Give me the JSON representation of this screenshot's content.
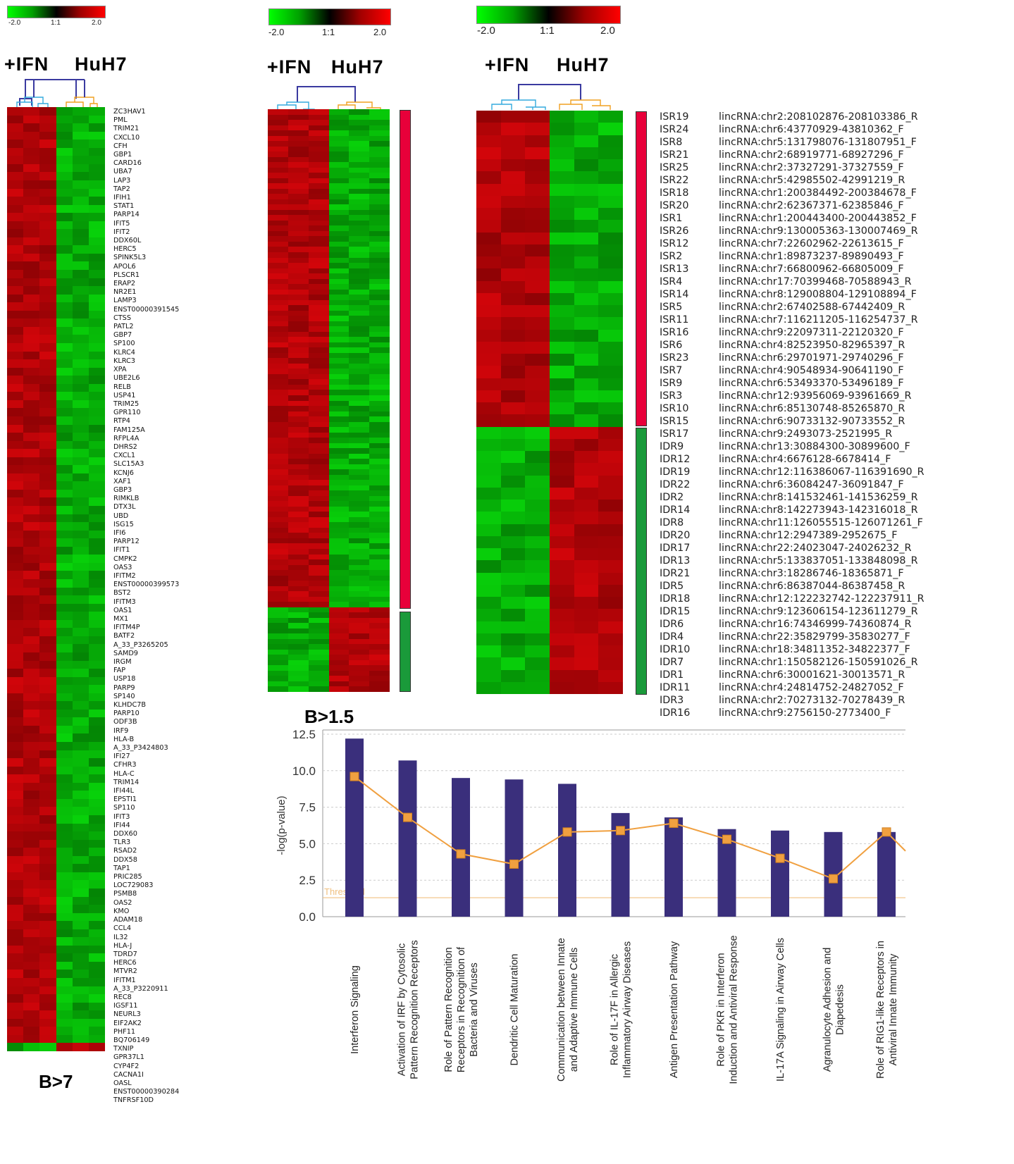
{
  "heatmap_left": {
    "scale": {
      "min_label": "-2.0",
      "mid_label": "1:1",
      "max_label": "2.0"
    },
    "groups": {
      "left": "+IFN",
      "right": "HuH7"
    },
    "genes": [
      "ZC3HAV1",
      "PML",
      "TRIM21",
      "CXCL10",
      "CFH",
      "GBP1",
      "CARD16",
      "UBA7",
      "LAP3",
      "TAP2",
      "IFIH1",
      "STAT1",
      "PARP14",
      "IFIT5",
      "IFIT2",
      "DDX60L",
      "HERC5",
      "SPINK5L3",
      "APOL6",
      "PLSCR1",
      "ERAP2",
      "NR2E1",
      "LAMP3",
      "ENST00000391545",
      "CTSS",
      "PATL2",
      "GBP7",
      "SP100",
      "KLRC4",
      "KLRC3",
      "XPA",
      "UBE2L6",
      "RELB",
      "USP41",
      "TRIM25",
      "GPR110",
      "RTP4",
      "FAM125A",
      "RFPL4A",
      "DHRS2",
      "CXCL1",
      "SLC15A3",
      "KCNJ6",
      "XAF1",
      "GBP3",
      "RIMKLB",
      "DTX3L",
      "UBD",
      "ISG15",
      "IFI6",
      "PARP12",
      "IFIT1",
      "CMPK2",
      "OAS3",
      "IFITM2",
      "ENST00000399573",
      "BST2",
      "IFITM3",
      "OAS1",
      "MX1",
      "IFITM4P",
      "BATF2",
      "A_33_P3265205",
      "SAMD9",
      "IRGM",
      "FAP",
      "USP18",
      "PARP9",
      "SP140",
      "KLHDC7B",
      "PARP10",
      "ODF3B",
      "IRF9",
      "HLA-B",
      "A_33_P3424803",
      "IFI27",
      "CFHR3",
      "HLA-C",
      "TRIM14",
      "IFI44L",
      "EPSTI1",
      "SP110",
      "IFIT3",
      "IFI44",
      "DDX60",
      "TLR3",
      "RSAD2",
      "DDX58",
      "TAP1",
      "PRIC285",
      "LOC729083",
      "PSMB8",
      "OAS2",
      "KMO",
      "ADAM18",
      "CCL4",
      "IL32",
      "HLA-J",
      "TDRD7",
      "HERC6",
      "MTVR2",
      "IFITM1",
      "A_33_P3220911",
      "REC8",
      "IGSF11",
      "NEURL3",
      "EIF2AK2",
      "PHF11",
      "BQ706149",
      "TXNIP",
      "GPR37L1",
      "CYP4F2",
      "CACNA1I",
      "OASL",
      "ENST00000390284",
      "TNFRSF10D"
    ],
    "caption": "B>7"
  },
  "heatmap_mid": {
    "scale": {
      "min_label": "-2.0",
      "mid_label": "1:1",
      "max_label": "2.0"
    },
    "groups": {
      "left": "+IFN",
      "right": "HuH7"
    },
    "caption": "B>1.5"
  },
  "heatmap_right": {
    "scale": {
      "min_label": "-2.0",
      "mid_label": "1:1",
      "max_label": "2.0"
    },
    "groups": {
      "left": "+IFN",
      "right": "HuH7"
    },
    "rows": [
      {
        "id": "ISR19",
        "name": "lincRNA:chr2:208102876-208103386_R"
      },
      {
        "id": "ISR24",
        "name": "lincRNA:chr6:43770929-43810362_F"
      },
      {
        "id": "ISR8",
        "name": "lincRNA:chr5:131798076-131807951_F"
      },
      {
        "id": "ISR21",
        "name": "lincRNA:chr2:68919771-68927296_F"
      },
      {
        "id": "ISR25",
        "name": "lincRNA:chr2:37327291-37327559_F"
      },
      {
        "id": "ISR22",
        "name": "lincRNA:chr5:42985502-42991219_R"
      },
      {
        "id": "ISR18",
        "name": "lincRNA:chr1:200384492-200384678_F"
      },
      {
        "id": "ISR20",
        "name": "lincRNA:chr2:62367371-62385846_F"
      },
      {
        "id": "ISR1",
        "name": "lincRNA:chr1:200443400-200443852_F"
      },
      {
        "id": "ISR26",
        "name": "lincRNA:chr9:130005363-130007469_R"
      },
      {
        "id": "ISR12",
        "name": "lincRNA:chr7:22602962-22613615_F"
      },
      {
        "id": "ISR2",
        "name": "lincRNA:chr1:89873237-89890493_F"
      },
      {
        "id": "ISR13",
        "name": "lincRNA:chr7:66800962-66805009_F"
      },
      {
        "id": "ISR4",
        "name": "lincRNA:chr17:70399468-70588943_R"
      },
      {
        "id": "ISR14",
        "name": "lincRNA:chr8:129008804-129108894_F"
      },
      {
        "id": "ISR5",
        "name": "lincRNA:chr2:67402588-67442409_R"
      },
      {
        "id": "ISR11",
        "name": "lincRNA:chr7:116211205-116254737_R"
      },
      {
        "id": "ISR16",
        "name": "lincRNA:chr9:22097311-22120320_F"
      },
      {
        "id": "ISR6",
        "name": "lincRNA:chr4:82523950-82965397_R"
      },
      {
        "id": "ISR23",
        "name": "lincRNA:chr6:29701971-29740296_F"
      },
      {
        "id": "ISR7",
        "name": "lincRNA:chr4:90548934-90641190_F"
      },
      {
        "id": "ISR9",
        "name": "lincRNA:chr6:53493370-53496189_F"
      },
      {
        "id": "ISR3",
        "name": "lincRNA:chr12:93956069-93961669_R"
      },
      {
        "id": "ISR10",
        "name": "lincRNA:chr6:85130748-85265870_R"
      },
      {
        "id": "ISR15",
        "name": "lincRNA:chr6:90733132-90733552_R"
      },
      {
        "id": "ISR17",
        "name": "lincRNA:chr9:2493073-2521995_R"
      },
      {
        "id": "IDR9",
        "name": "lincRNA:chr13:30884300-30899600_F"
      },
      {
        "id": "IDR12",
        "name": "lincRNA:chr4:6676128-6678414_F"
      },
      {
        "id": "IDR19",
        "name": "lincRNA:chr12:116386067-116391690_R"
      },
      {
        "id": "IDR22",
        "name": "lincRNA:chr6:36084247-36091847_F"
      },
      {
        "id": "IDR2",
        "name": "lincRNA:chr8:141532461-141536259_R"
      },
      {
        "id": "IDR14",
        "name": "lincRNA:chr8:142273943-142316018_R"
      },
      {
        "id": "IDR8",
        "name": "lincRNA:chr11:126055515-126071261_F"
      },
      {
        "id": "IDR20",
        "name": "lincRNA:chr12:2947389-2952675_F"
      },
      {
        "id": "IDR17",
        "name": "lincRNA:chr22:24023047-24026232_R"
      },
      {
        "id": "IDR13",
        "name": "lincRNA:chr5:133837051-133848098_R"
      },
      {
        "id": "IDR21",
        "name": "lincRNA:chr3:18286746-18365871_F"
      },
      {
        "id": "IDR5",
        "name": "lincRNA:chr6:86387044-86387458_R"
      },
      {
        "id": "IDR18",
        "name": "lincRNA:chr12:122232742-122237911_R"
      },
      {
        "id": "IDR15",
        "name": "lincRNA:chr9:123606154-123611279_R"
      },
      {
        "id": "IDR6",
        "name": "lincRNA:chr16:74346999-74360874_R"
      },
      {
        "id": "IDR4",
        "name": "lincRNA:chr22:35829799-35830277_F"
      },
      {
        "id": "IDR10",
        "name": "lincRNA:chr18:34811352-34822377_F"
      },
      {
        "id": "IDR7",
        "name": "lincRNA:chr1:150582126-150591026_R"
      },
      {
        "id": "IDR1",
        "name": "lincRNA:chr6:30001621-30013571_R"
      },
      {
        "id": "IDR11",
        "name": "lincRNA:chr4:24814752-24827052_F"
      },
      {
        "id": "IDR3",
        "name": "lincRNA:chr2:70273132-70278439_R"
      },
      {
        "id": "IDR16",
        "name": "lincRNA:chr9:2756150-2773400_F"
      }
    ]
  },
  "colors": {
    "up": "#e8003a",
    "down": "#1a9a3a",
    "bar": "#3a2f7c",
    "line": "#f0a040",
    "point": "#f0a040",
    "threshold": "#f0c080"
  },
  "chart_data": {
    "type": "bar",
    "ylabel": "-log(p-value)",
    "ylim": [
      0,
      12.5
    ],
    "yticks": [
      "0.0",
      "2.5",
      "5.0",
      "7.5",
      "10.0",
      "12.5"
    ],
    "threshold_label": "Threshold",
    "threshold_value": 1.3,
    "categories": [
      "Interferon Signaling",
      "Activation of IRF by Cytosolic Pattern Recognition Receptors",
      "Role of Pattern Recognition Receptors in Recognition of Bacteria and Viruses",
      "Dendritic Cell Maturation",
      "Communication between Innate and Adaptive Immune Cells",
      "Role of IL-17F in Allergic Inflammatory Airway Diseases",
      "Antigen Presentation Pathway",
      "Role of PKR in Interferon Induction and Antiviral Response",
      "IL-17A Signaling in Airway Cells",
      "Agranulocyte Adhesion and Diapedesis",
      "Role of RIG1-like Receptors in Antiviral Innate Immunity"
    ],
    "category_lines": [
      [
        "Interferon Signaling"
      ],
      [
        "Activation of IRF by Cytosolic",
        "Pattern Recognition Receptors"
      ],
      [
        "Role of Pattern Recognition",
        "Receptors in Recognition of",
        "Bacteria and Viruses"
      ],
      [
        "Dendritic Cell Maturation"
      ],
      [
        "Communication between Innate",
        "and Adaptive Immune Cells"
      ],
      [
        "Role of IL-17F in Allergic",
        "Inflammatory Airway Diseases"
      ],
      [
        "Antigen Presentation Pathway"
      ],
      [
        "Role of PKR in Interferon",
        "Induction and Antiviral Response"
      ],
      [
        "IL-17A Signaling in Airway Cells"
      ],
      [
        "Agranulocyte Adhesion and",
        "Diapedesis"
      ],
      [
        "Role of RIG1-like Receptors in",
        "Antiviral Innate Immunity"
      ]
    ],
    "series": [
      {
        "values": [
          12.2,
          10.7,
          9.5,
          9.4,
          9.1,
          7.1,
          6.8,
          6.0,
          5.9,
          5.8,
          5.8
        ]
      },
      {
        "values": [
          9.6,
          6.8,
          4.3,
          3.6,
          5.8,
          5.9,
          6.4,
          5.3,
          4.0,
          2.6,
          5.8
        ]
      }
    ],
    "line_tail": 4.5,
    "grid": true
  }
}
